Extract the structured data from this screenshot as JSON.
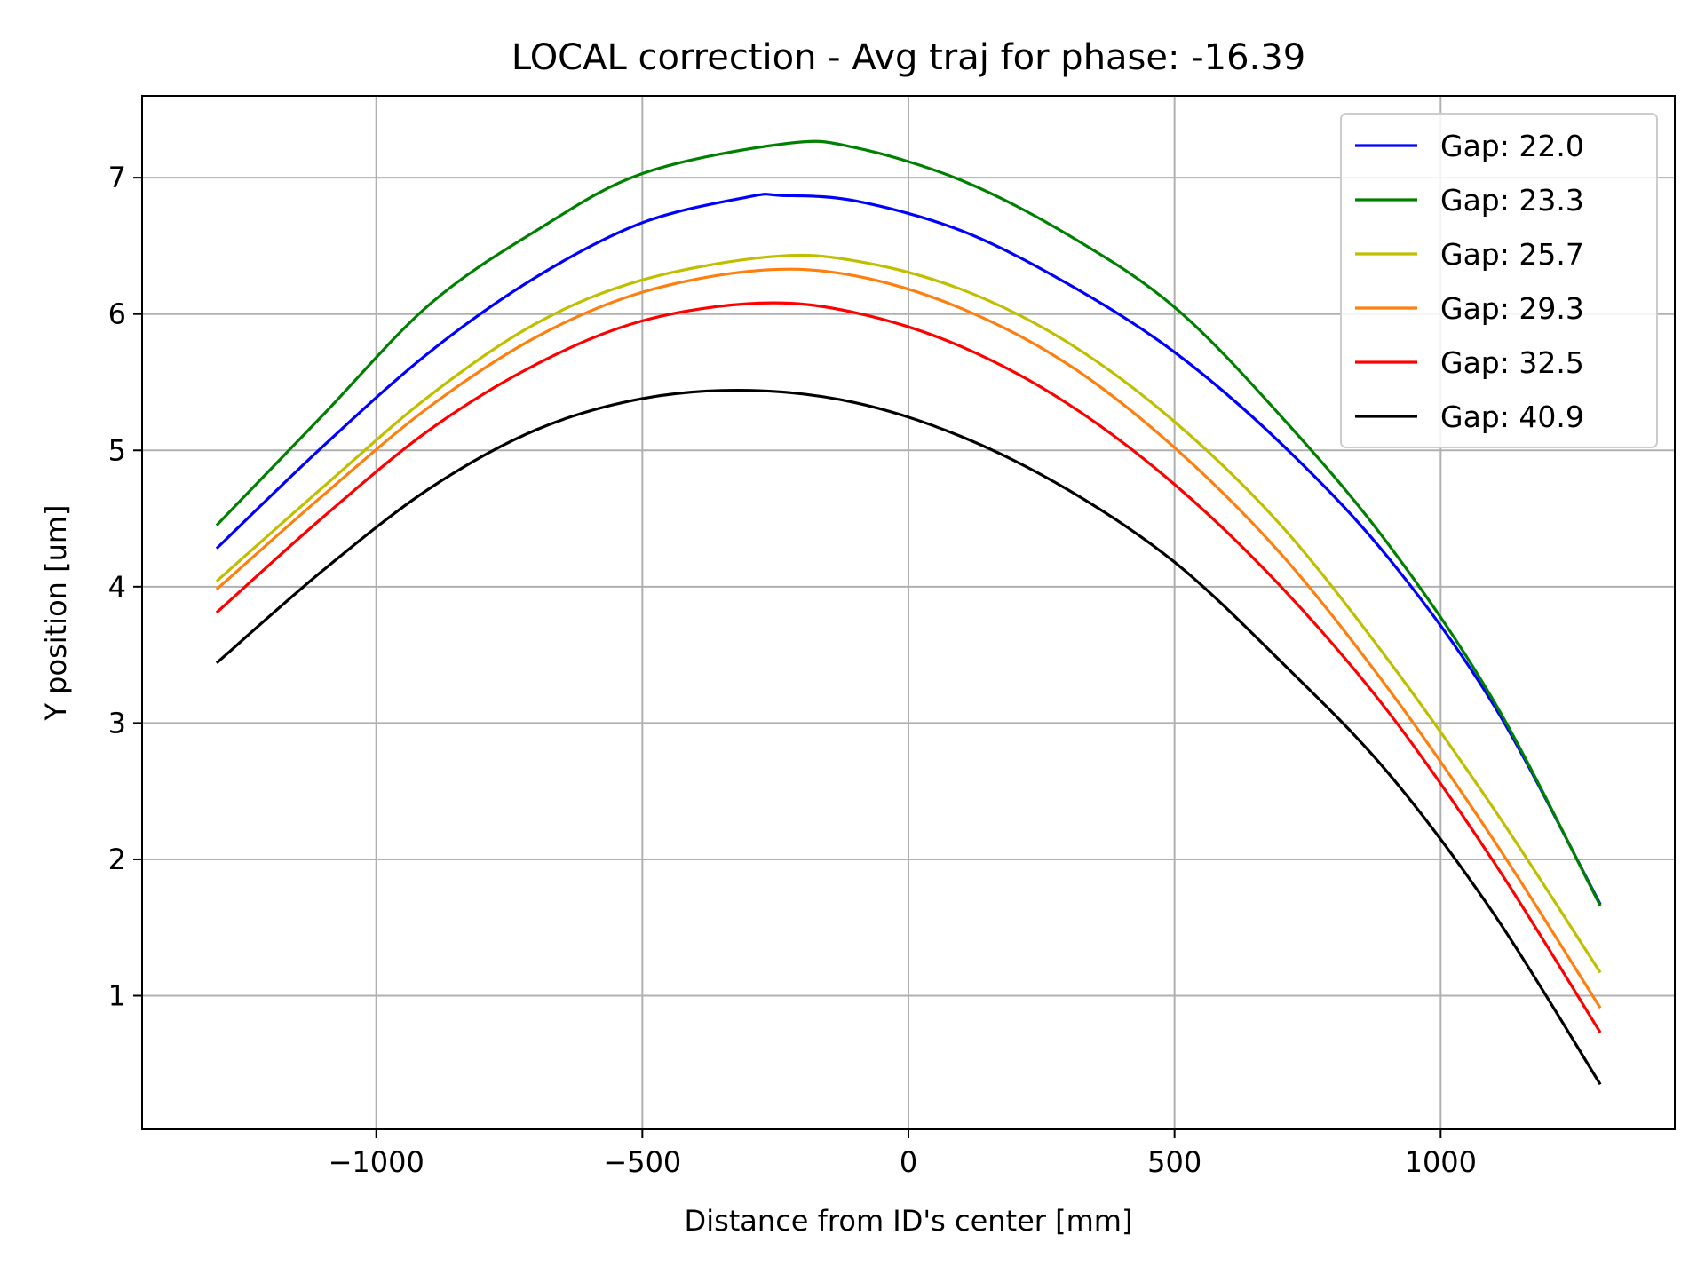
{
  "chart_data": {
    "type": "line",
    "title": "LOCAL correction - Avg traj for phase: -16.39",
    "xlabel": "Distance from ID's center [mm]",
    "ylabel": "Y position [um]",
    "xlim": [
      -1440,
      1440
    ],
    "ylim": [
      0.02,
      7.6
    ],
    "xticks": [
      -1000,
      -500,
      0,
      500,
      1000
    ],
    "xtick_labels": [
      "−1000",
      "−500",
      "0",
      "500",
      "1000"
    ],
    "yticks": [
      1,
      2,
      3,
      4,
      5,
      6,
      7
    ],
    "ytick_labels": [
      "1",
      "2",
      "3",
      "4",
      "5",
      "6",
      "7"
    ],
    "grid": true,
    "legend_position": "top-right",
    "series": [
      {
        "name": "Gap: 22.0",
        "color": "#0000ff",
        "x": [
          -1300,
          -1100,
          -900,
          -700,
          -500,
          -300,
          -240,
          -100,
          100,
          300,
          500,
          700,
          900,
          1100,
          1300
        ],
        "y": [
          4.28,
          5.03,
          5.72,
          6.27,
          6.67,
          6.86,
          6.87,
          6.83,
          6.61,
          6.22,
          5.72,
          5.05,
          4.22,
          3.13,
          1.67
        ]
      },
      {
        "name": "Gap: 23.3",
        "color": "#008000",
        "x": [
          -1300,
          -1100,
          -900,
          -700,
          -500,
          -230,
          -100,
          100,
          300,
          500,
          700,
          900,
          1100,
          1300
        ],
        "y": [
          4.45,
          5.26,
          6.07,
          6.61,
          7.03,
          7.25,
          7.22,
          6.98,
          6.58,
          6.05,
          5.25,
          4.32,
          3.16,
          1.66
        ]
      },
      {
        "name": "Gap: 25.7",
        "color": "#bfbf00",
        "x": [
          -1300,
          -1100,
          -900,
          -700,
          -500,
          -260,
          -100,
          100,
          300,
          500,
          700,
          900,
          1100,
          1300
        ],
        "y": [
          4.04,
          4.73,
          5.4,
          5.93,
          6.25,
          6.42,
          6.39,
          6.18,
          5.79,
          5.21,
          4.45,
          3.47,
          2.37,
          1.17
        ]
      },
      {
        "name": "Gap: 29.3",
        "color": "#ff7f0e",
        "x": [
          -1300,
          -1100,
          -900,
          -700,
          -500,
          -280,
          -100,
          100,
          300,
          500,
          700,
          900,
          1100,
          1300
        ],
        "y": [
          3.98,
          4.67,
          5.32,
          5.83,
          6.16,
          6.32,
          6.28,
          6.04,
          5.63,
          5.02,
          4.24,
          3.26,
          2.14,
          0.91
        ]
      },
      {
        "name": "Gap: 32.5",
        "color": "#ff0000",
        "x": [
          -1300,
          -1100,
          -900,
          -700,
          -500,
          -280,
          -100,
          100,
          300,
          500,
          700,
          900,
          1100,
          1300
        ],
        "y": [
          3.81,
          4.51,
          5.15,
          5.63,
          5.95,
          6.08,
          6.01,
          5.76,
          5.34,
          4.75,
          4.0,
          3.09,
          1.98,
          0.73
        ]
      },
      {
        "name": "Gap: 40.9",
        "color": "#000000",
        "x": [
          -1300,
          -1100,
          -900,
          -700,
          -500,
          -300,
          -100,
          100,
          300,
          500,
          700,
          900,
          1100,
          1300
        ],
        "y": [
          3.44,
          4.12,
          4.72,
          5.15,
          5.38,
          5.44,
          5.35,
          5.1,
          4.71,
          4.18,
          3.45,
          2.64,
          1.6,
          0.35
        ]
      }
    ]
  }
}
